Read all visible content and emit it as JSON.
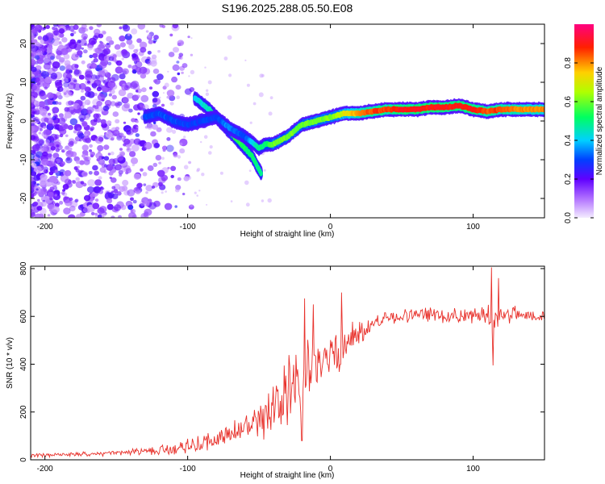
{
  "title": "S196.2025.288.05.50.E08",
  "colors": {
    "snr_line": "#e8312b",
    "axis": "#000000",
    "background": "#ffffff"
  },
  "chart_data": [
    {
      "type": "heatmap",
      "panel": "spectrogram",
      "xlabel": "Height of straight line (km)",
      "ylabel": "Frequency (Hz)",
      "xlim": [
        -210,
        150
      ],
      "ylim": [
        -25,
        25
      ],
      "xticks": [
        -200,
        -100,
        0,
        100
      ],
      "yticks": [
        -20,
        -10,
        0,
        10,
        20
      ],
      "colorbar": {
        "label": "Normalized spectral amplitude",
        "range": [
          0,
          1
        ],
        "ticks": [
          0.0,
          0.2,
          0.4,
          0.6,
          0.8
        ],
        "colormap": [
          "#e0d0f8",
          "#8a2be2",
          "#0000ff",
          "#00ffff",
          "#00ff00",
          "#ffff00",
          "#ff0000",
          "#ff0080"
        ]
      },
      "ridge": {
        "x": [
          -130,
          -120,
          -110,
          -100,
          -90,
          -80,
          -70,
          -60,
          -50,
          -45,
          -40,
          -35,
          -30,
          -20,
          -10,
          0,
          10,
          20,
          30,
          40,
          50,
          60,
          70,
          80,
          90,
          100,
          110,
          120,
          130,
          140,
          150
        ],
        "freq": [
          1,
          2,
          0,
          -1,
          0,
          1,
          -2,
          -4,
          -7,
          -6,
          -6,
          -5,
          -4,
          -1,
          0,
          1,
          2,
          2,
          2.5,
          3,
          3,
          3,
          3.5,
          3.5,
          4,
          3,
          2.5,
          3,
          3,
          3,
          3
        ],
        "amplitude": [
          0.3,
          0.3,
          0.3,
          0.3,
          0.3,
          0.3,
          0.35,
          0.3,
          0.5,
          0.5,
          0.6,
          0.6,
          0.6,
          0.6,
          0.6,
          0.6,
          0.7,
          0.8,
          0.85,
          0.85,
          0.9,
          0.9,
          0.9,
          0.9,
          0.9,
          0.9,
          0.85,
          0.85,
          0.8,
          0.8,
          0.8
        ]
      },
      "branch": {
        "x": [
          -95,
          -85,
          -75,
          -65,
          -55,
          -48
        ],
        "freq": [
          6,
          3,
          -1,
          -5,
          -9,
          -14
        ],
        "amplitude": [
          0.4,
          0.45,
          0.5,
          0.55,
          0.5,
          0.5
        ]
      }
    },
    {
      "type": "line",
      "panel": "snr",
      "xlabel": "Height of straight line (km)",
      "ylabel": "SNR (10 * v/v)",
      "xlim": [
        -210,
        150
      ],
      "ylim": [
        0,
        810
      ],
      "xticks": [
        -200,
        -100,
        0,
        100
      ],
      "yticks": [
        0,
        200,
        400,
        600,
        800
      ],
      "series": [
        {
          "name": "SNR",
          "envelope_x": [
            -210,
            -180,
            -150,
            -130,
            -110,
            -100,
            -90,
            -80,
            -70,
            -60,
            -50,
            -40,
            -30,
            -20,
            -10,
            0,
            10,
            20,
            30,
            40,
            50,
            60,
            70,
            80,
            90,
            100,
            110,
            112,
            115,
            120,
            130,
            140,
            150
          ],
          "envelope_mean": [
            18,
            22,
            28,
            35,
            45,
            60,
            70,
            85,
            110,
            130,
            150,
            200,
            270,
            350,
            400,
            430,
            480,
            530,
            570,
            595,
            600,
            605,
            610,
            605,
            605,
            600,
            600,
            620,
            600,
            605,
            610,
            605,
            600
          ],
          "noise_amplitude": [
            8,
            9,
            10,
            15,
            25,
            30,
            35,
            45,
            55,
            60,
            70,
            110,
            140,
            140,
            130,
            110,
            90,
            50,
            35,
            30,
            30,
            30,
            30,
            30,
            30,
            35,
            50,
            120,
            60,
            35,
            30,
            30,
            30
          ],
          "spikes": [
            {
              "x": -18,
              "y": 675
            },
            {
              "x": -12,
              "y": 650
            },
            {
              "x": 8,
              "y": 700
            },
            {
              "x": 113,
              "y": 805
            },
            {
              "x": 118,
              "y": 760
            },
            {
              "x": 114,
              "y": 395
            },
            {
              "x": -20,
              "y": 80
            }
          ]
        }
      ]
    }
  ]
}
